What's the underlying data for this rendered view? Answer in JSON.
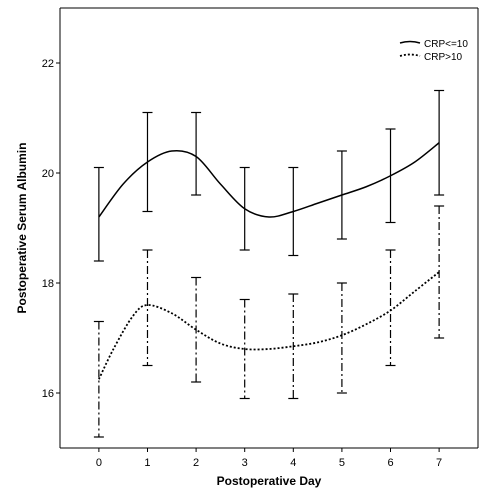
{
  "chart_data": {
    "type": "line",
    "xlabel": "Postoperative Day",
    "ylabel": "Postoperative Serum Albumin",
    "x": [
      0,
      1,
      2,
      3,
      4,
      5,
      6,
      7
    ],
    "x_ticks": [
      "0",
      "1",
      "2",
      "3",
      "4",
      "5",
      "6",
      "7"
    ],
    "xlim": [
      -0.8,
      7.8
    ],
    "y_ticks": [
      "16",
      "18",
      "20",
      "22"
    ],
    "ylim": [
      15.0,
      23.0
    ],
    "legend_position": "top-right",
    "grid": false,
    "series": [
      {
        "name": "CRP<=10",
        "style": "solid",
        "error_bars": [
          {
            "x": 0,
            "low": 18.4,
            "high": 20.1
          },
          {
            "x": 1,
            "low": 19.3,
            "high": 21.1
          },
          {
            "x": 2,
            "low": 19.6,
            "high": 21.1
          },
          {
            "x": 3,
            "low": 18.6,
            "high": 20.1
          },
          {
            "x": 4,
            "low": 18.5,
            "high": 20.1
          },
          {
            "x": 5,
            "low": 18.8,
            "high": 20.4
          },
          {
            "x": 6,
            "low": 19.1,
            "high": 20.8
          },
          {
            "x": 7,
            "low": 19.6,
            "high": 21.5
          }
        ],
        "curve": [
          [
            0,
            19.2
          ],
          [
            0.5,
            19.8
          ],
          [
            1,
            20.2
          ],
          [
            1.5,
            20.4
          ],
          [
            2,
            20.3
          ],
          [
            2.5,
            19.8
          ],
          [
            3,
            19.35
          ],
          [
            3.5,
            19.2
          ],
          [
            4,
            19.3
          ],
          [
            4.5,
            19.45
          ],
          [
            5,
            19.6
          ],
          [
            5.5,
            19.75
          ],
          [
            6,
            19.95
          ],
          [
            6.5,
            20.2
          ],
          [
            7,
            20.55
          ]
        ]
      },
      {
        "name": "CRP>10",
        "style": "dotted",
        "error_bars": [
          {
            "x": 0,
            "low": 15.2,
            "high": 17.3
          },
          {
            "x": 1,
            "low": 16.5,
            "high": 18.6
          },
          {
            "x": 2,
            "low": 16.2,
            "high": 18.1
          },
          {
            "x": 3,
            "low": 15.9,
            "high": 17.7
          },
          {
            "x": 4,
            "low": 15.9,
            "high": 17.8
          },
          {
            "x": 5,
            "low": 16.0,
            "high": 18.0
          },
          {
            "x": 6,
            "low": 16.5,
            "high": 18.6
          },
          {
            "x": 7,
            "low": 17.0,
            "high": 19.4
          }
        ],
        "curve": [
          [
            0,
            16.25
          ],
          [
            0.3,
            16.8
          ],
          [
            0.7,
            17.4
          ],
          [
            1,
            17.6
          ],
          [
            1.5,
            17.45
          ],
          [
            2,
            17.15
          ],
          [
            2.5,
            16.9
          ],
          [
            3,
            16.8
          ],
          [
            3.5,
            16.8
          ],
          [
            4,
            16.85
          ],
          [
            4.5,
            16.92
          ],
          [
            5,
            17.05
          ],
          [
            5.5,
            17.25
          ],
          [
            6,
            17.5
          ],
          [
            6.5,
            17.85
          ],
          [
            7,
            18.2
          ]
        ]
      }
    ]
  }
}
